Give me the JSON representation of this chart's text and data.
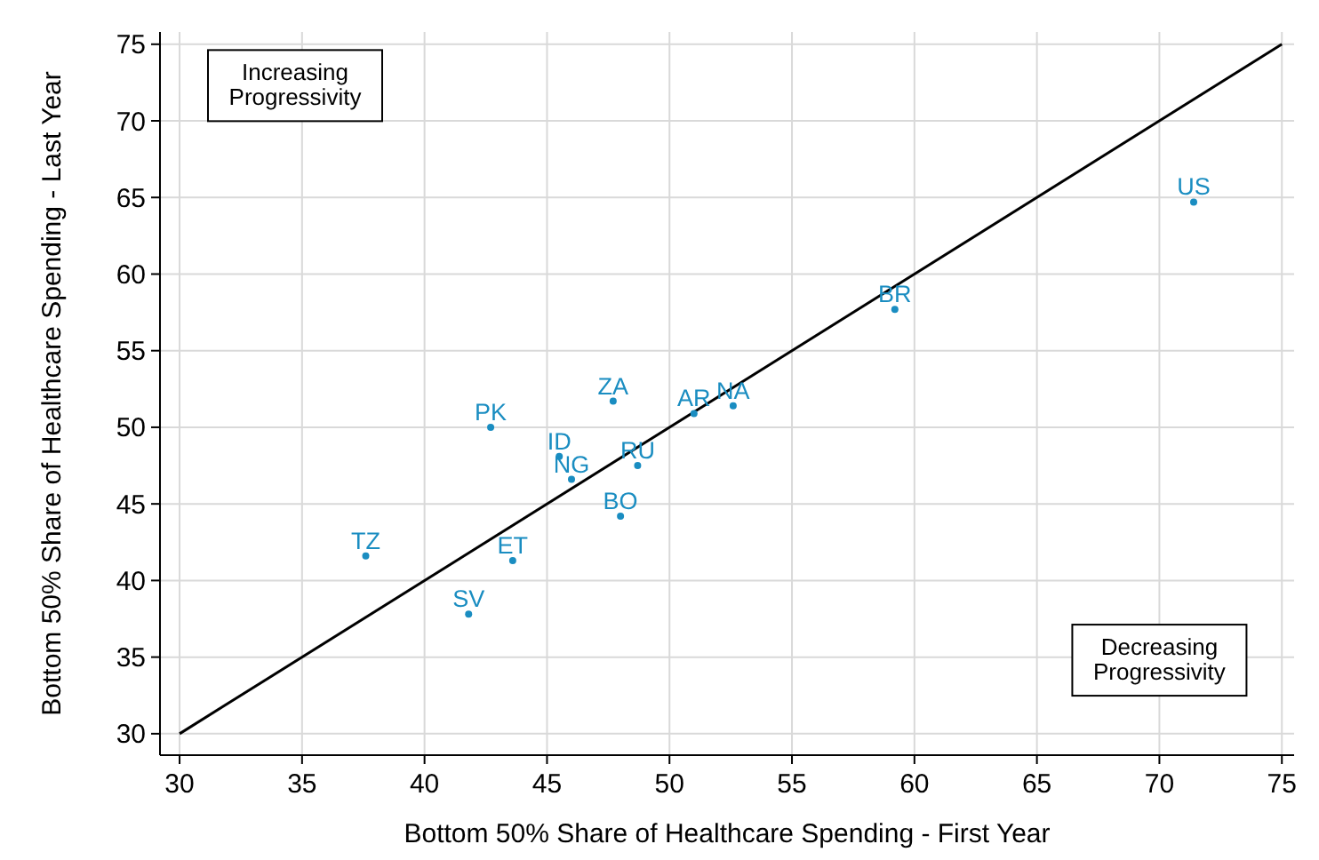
{
  "chart_data": {
    "type": "scatter",
    "xlabel": "Bottom 50% Share of Healthcare Spending - First Year",
    "ylabel": "Bottom 50% Share of Healthcare Spending - Last Year",
    "xlim": [
      29.2,
      75.5
    ],
    "ylim": [
      28.6,
      75.8
    ],
    "xticks": [
      30,
      35,
      40,
      45,
      50,
      55,
      60,
      65,
      70,
      75
    ],
    "yticks": [
      30,
      35,
      40,
      45,
      50,
      55,
      60,
      65,
      70,
      75
    ],
    "grid": true,
    "legend": false,
    "annotations": [
      "Increasing\nProgressivity",
      "Decreasing\nProgressivity"
    ],
    "series": [
      {
        "type": "line",
        "color": "#000000",
        "x": [
          30,
          75
        ],
        "values": [
          30,
          75
        ]
      },
      {
        "name": "US",
        "color": "#1a8dc1",
        "marker": "circle",
        "x": [
          71.4
        ],
        "values": [
          64.7
        ]
      },
      {
        "name": "BR",
        "color": "#1a8dc1",
        "marker": "circle",
        "x": [
          59.2
        ],
        "values": [
          57.7
        ]
      },
      {
        "name": "NA",
        "color": "#1a8dc1",
        "marker": "circle",
        "x": [
          52.6
        ],
        "values": [
          51.4
        ]
      },
      {
        "name": "AR",
        "color": "#1a8dc1",
        "marker": "circle",
        "x": [
          51.0
        ],
        "values": [
          50.9
        ]
      },
      {
        "name": "ZA",
        "color": "#1a8dc1",
        "marker": "circle",
        "x": [
          47.7
        ],
        "values": [
          51.7
        ]
      },
      {
        "name": "PK",
        "color": "#1a8dc1",
        "marker": "circle",
        "x": [
          42.7
        ],
        "values": [
          50.0
        ]
      },
      {
        "name": "ID",
        "color": "#1a8dc1",
        "marker": "circle",
        "x": [
          45.5
        ],
        "values": [
          48.1
        ]
      },
      {
        "name": "NG",
        "color": "#1a8dc1",
        "marker": "circle",
        "x": [
          46.0
        ],
        "values": [
          46.6
        ]
      },
      {
        "name": "RU",
        "color": "#1a8dc1",
        "marker": "circle",
        "x": [
          48.7
        ],
        "values": [
          47.5
        ]
      },
      {
        "name": "BO",
        "color": "#1a8dc1",
        "marker": "circle",
        "x": [
          48.0
        ],
        "values": [
          44.2
        ]
      },
      {
        "name": "TZ",
        "color": "#1a8dc1",
        "marker": "circle",
        "x": [
          37.6
        ],
        "values": [
          41.6
        ]
      },
      {
        "name": "ET",
        "color": "#1a8dc1",
        "marker": "circle",
        "x": [
          43.6
        ],
        "values": [
          41.3
        ]
      },
      {
        "name": "SV",
        "color": "#1a8dc1",
        "marker": "circle",
        "x": [
          41.8
        ],
        "values": [
          37.8
        ]
      }
    ]
  }
}
